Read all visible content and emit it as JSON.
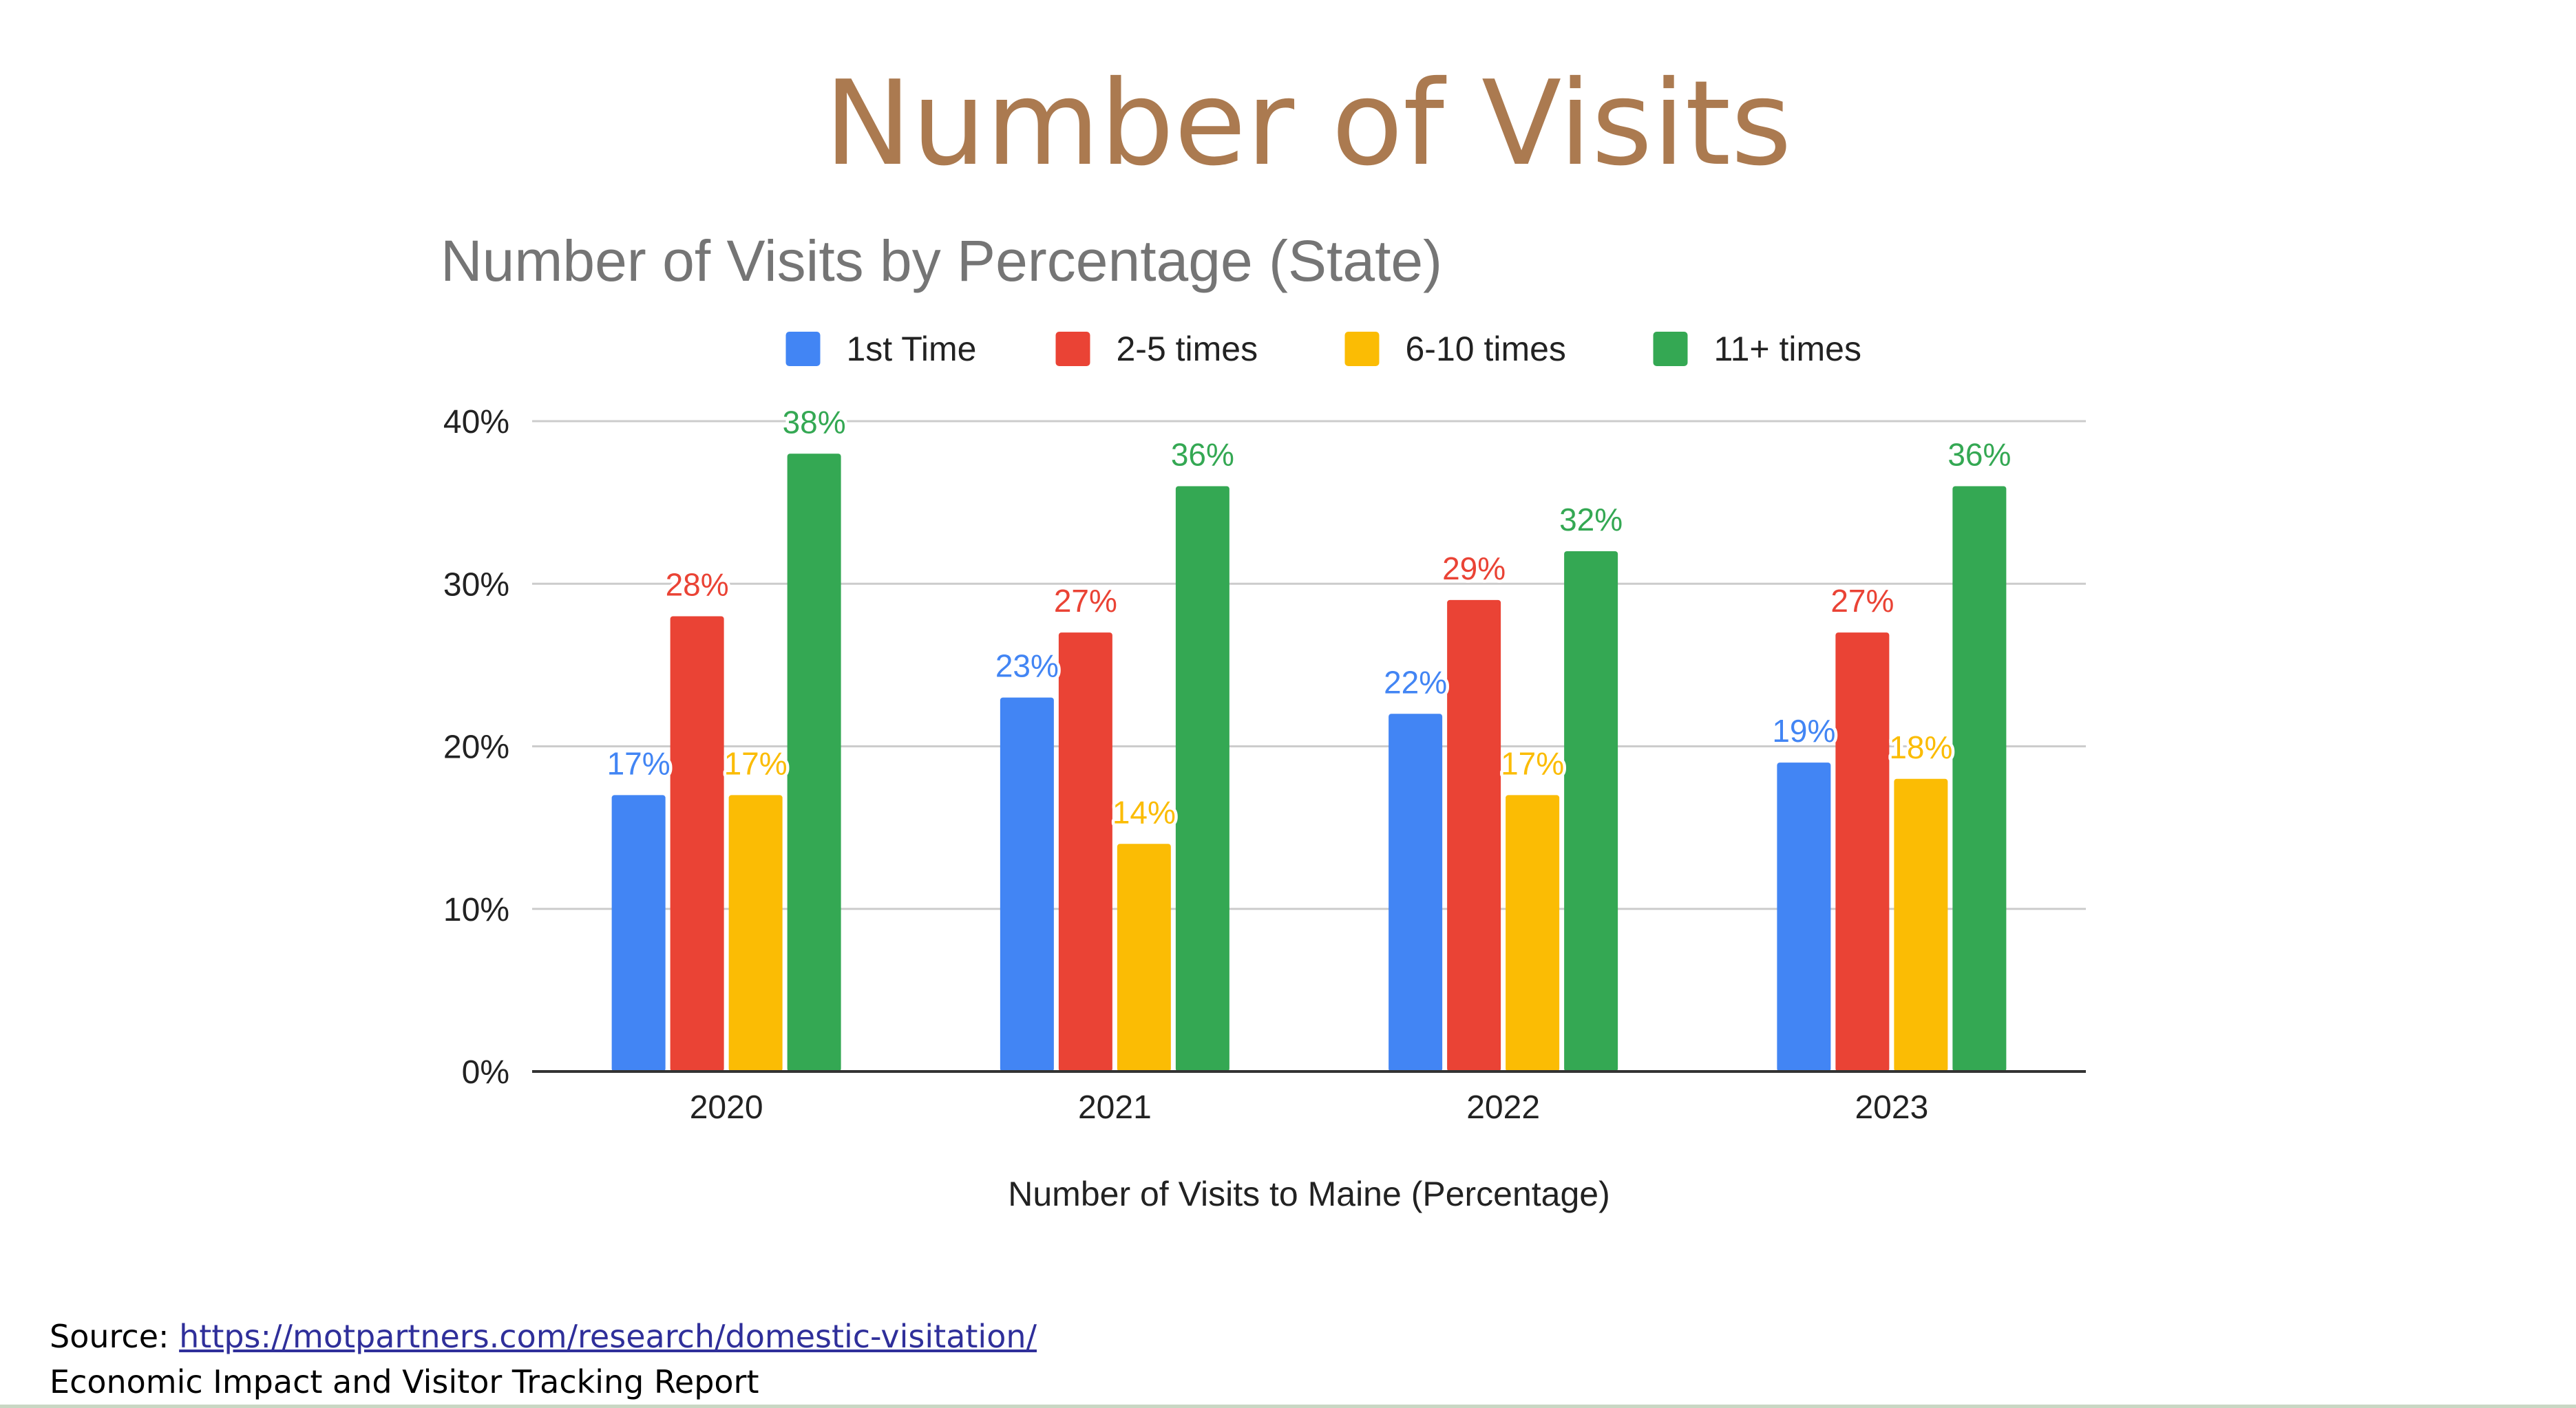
{
  "slide": {
    "title": "Number of Visits"
  },
  "footer": {
    "source_label": "Source: ",
    "source_link": "https://motpartners.com/research/domestic-visitation/",
    "report_name": "Economic Impact and Visitor Tracking Report"
  },
  "chart_data": {
    "type": "bar",
    "title": "Number of Visits by Percentage (State)",
    "xlabel": "Number of Visits to Maine (Percentage)",
    "ylabel": "",
    "categories": [
      "2020",
      "2021",
      "2022",
      "2023"
    ],
    "series": [
      {
        "name": "1st Time",
        "color": "#4285f4",
        "values": [
          17,
          23,
          22,
          19
        ],
        "labels": [
          "17%",
          "23%",
          "22%",
          "19%"
        ]
      },
      {
        "name": "2-5 times",
        "color": "#ea4335",
        "values": [
          28,
          27,
          29,
          27
        ],
        "labels": [
          "28%",
          "27%",
          "29%",
          "27%"
        ]
      },
      {
        "name": "6-10 times",
        "color": "#fbbc04",
        "values": [
          17,
          14,
          17,
          18
        ],
        "labels": [
          "17%",
          "14%",
          "17%",
          "18%"
        ]
      },
      {
        "name": "11+ times",
        "color": "#34a853",
        "values": [
          38,
          36,
          32,
          36
        ],
        "labels": [
          "38%",
          "36%",
          "32%",
          "36%"
        ]
      }
    ],
    "yticks": [
      {
        "value": 0,
        "label": "0%"
      },
      {
        "value": 10,
        "label": "10%"
      },
      {
        "value": 20,
        "label": "20%"
      },
      {
        "value": 30,
        "label": "30%"
      },
      {
        "value": 40,
        "label": "40%"
      }
    ],
    "ylim": [
      0,
      40
    ],
    "grid": true,
    "legend_position": "top"
  }
}
